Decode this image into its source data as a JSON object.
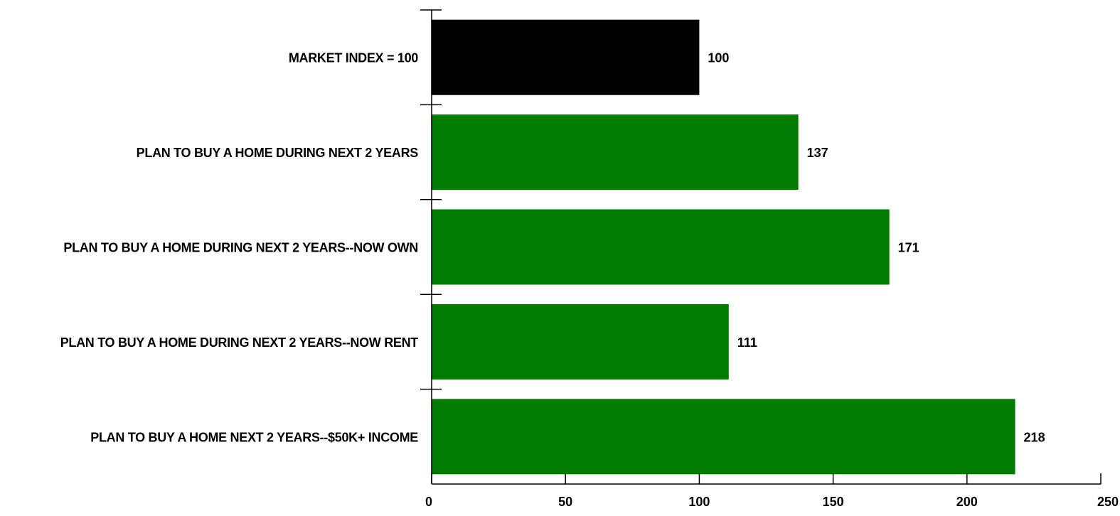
{
  "chart_data": {
    "type": "bar",
    "orientation": "horizontal",
    "categories": [
      "MARKET INDEX = 100",
      "PLAN TO BUY A HOME DURING NEXT 2 YEARS",
      "PLAN TO BUY A HOME DURING NEXT 2 YEARS--NOW OWN",
      "PLAN TO BUY A HOME DURING NEXT 2 YEARS--NOW RENT",
      "PLAN TO BUY A HOME NEXT 2 YEARS--$50K+ INCOME"
    ],
    "values": [
      100,
      137,
      171,
      111,
      218
    ],
    "value_labels": [
      "100",
      "137",
      "171",
      "111",
      "218"
    ],
    "bar_colors": [
      "#000000",
      "#007d00",
      "#007d00",
      "#007d00",
      "#007d00"
    ],
    "xlim": [
      0,
      250
    ],
    "xticks": [
      0,
      50,
      100,
      150,
      200,
      250
    ],
    "xtick_labels": [
      "0",
      "50",
      "100",
      "150",
      "200",
      "250"
    ],
    "grid": false,
    "legend": "none",
    "title": "",
    "xlabel": "",
    "ylabel": ""
  }
}
